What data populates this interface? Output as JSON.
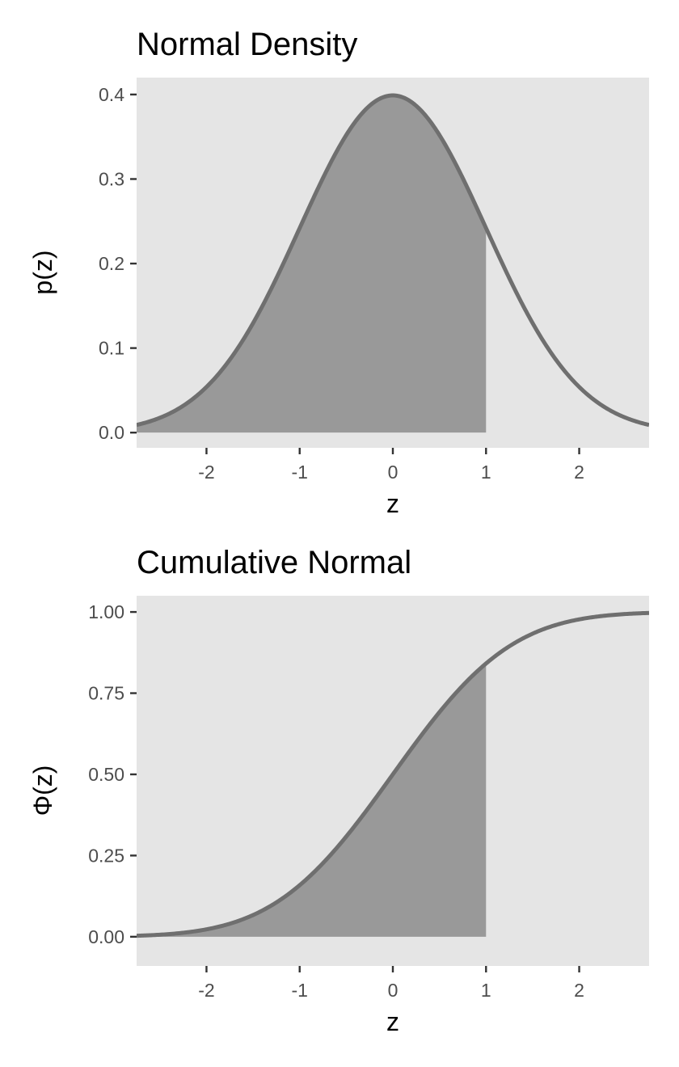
{
  "chart_data": [
    {
      "type": "area",
      "title": "Normal Density",
      "xlabel": "z",
      "ylabel": "p(z)",
      "function": "standard normal density",
      "xlim": [
        -2.75,
        2.75
      ],
      "ylim": [
        -0.018,
        0.42
      ],
      "x_ticks": [
        -2,
        -1,
        0,
        1,
        2
      ],
      "x_tick_labels": [
        "-2",
        "-1",
        "0",
        "1",
        "2"
      ],
      "y_ticks": [
        0.0,
        0.1,
        0.2,
        0.3,
        0.4
      ],
      "y_tick_labels": [
        "0.0",
        "0.1",
        "0.2",
        "0.3",
        "0.4"
      ],
      "shaded_region": {
        "from": -2.75,
        "to": 1.0
      },
      "series": [
        {
          "x": [
            -2.75,
            -2.5,
            -2.0,
            -1.5,
            -1.0,
            -0.5,
            0.0,
            0.5,
            1.0,
            1.5,
            2.0,
            2.5,
            2.75
          ],
          "values": [
            0.009,
            0.018,
            0.054,
            0.13,
            0.242,
            0.352,
            0.399,
            0.352,
            0.242,
            0.13,
            0.054,
            0.018,
            0.009
          ]
        }
      ],
      "grid": false,
      "colors": {
        "panel": "#e5e5e5",
        "fill": "#999999",
        "curve": "#6f6f6f"
      }
    },
    {
      "type": "area",
      "title": "Cumulative Normal",
      "xlabel": "z",
      "ylabel": "Φ(z)",
      "function": "standard normal cumulative distribution",
      "xlim": [
        -2.75,
        2.75
      ],
      "ylim": [
        -0.09,
        1.05
      ],
      "x_ticks": [
        -2,
        -1,
        0,
        1,
        2
      ],
      "x_tick_labels": [
        "-2",
        "-1",
        "0",
        "1",
        "2"
      ],
      "y_ticks": [
        0.0,
        0.25,
        0.5,
        0.75,
        1.0
      ],
      "y_tick_labels": [
        "0.00",
        "0.25",
        "0.50",
        "0.75",
        "1.00"
      ],
      "shaded_region": {
        "from": -2.75,
        "to": 1.0
      },
      "series": [
        {
          "x": [
            -2.75,
            -2.5,
            -2.0,
            -1.5,
            -1.0,
            -0.5,
            0.0,
            0.5,
            1.0,
            1.5,
            2.0,
            2.5,
            2.75
          ],
          "values": [
            0.003,
            0.006,
            0.023,
            0.067,
            0.159,
            0.309,
            0.5,
            0.691,
            0.841,
            0.933,
            0.977,
            0.994,
            0.997
          ]
        }
      ],
      "grid": false,
      "colors": {
        "panel": "#e5e5e5",
        "fill": "#999999",
        "curve": "#6f6f6f"
      }
    }
  ]
}
